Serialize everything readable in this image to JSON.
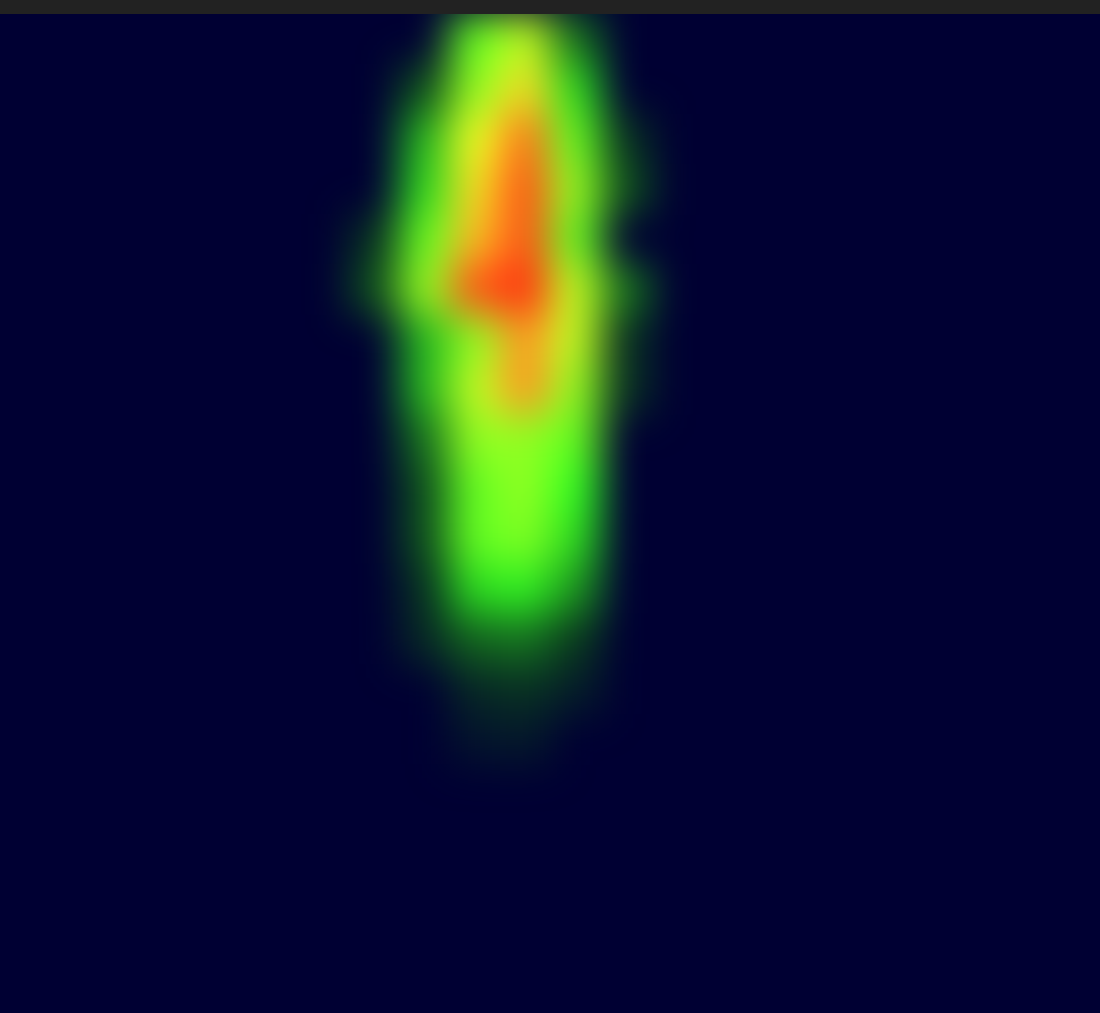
{
  "chart_data": {
    "type": "heatmap",
    "xlim": [
      0,
      22
    ],
    "ylim": [
      0,
      20
    ],
    "tick_labels": false,
    "cells": [
      [
        9,
        0,
        0.45
      ],
      [
        10,
        0,
        0.55
      ],
      [
        11,
        0,
        0.2
      ],
      [
        8,
        1,
        0.15
      ],
      [
        9,
        1,
        0.5
      ],
      [
        10,
        1,
        0.65
      ],
      [
        11,
        1,
        0.35
      ],
      [
        8,
        2,
        0.3
      ],
      [
        9,
        2,
        0.6
      ],
      [
        10,
        2,
        0.8
      ],
      [
        11,
        2,
        0.45
      ],
      [
        12,
        2,
        0.1
      ],
      [
        8,
        3,
        0.35
      ],
      [
        9,
        3,
        0.65
      ],
      [
        10,
        3,
        0.85
      ],
      [
        11,
        3,
        0.5
      ],
      [
        12,
        3,
        0.15
      ],
      [
        7,
        4,
        0.1
      ],
      [
        8,
        4,
        0.45
      ],
      [
        9,
        4,
        0.7
      ],
      [
        10,
        4,
        0.85
      ],
      [
        11,
        4,
        0.45
      ],
      [
        7,
        5,
        0.15
      ],
      [
        8,
        5,
        0.5
      ],
      [
        9,
        5,
        0.85
      ],
      [
        10,
        5,
        0.9
      ],
      [
        11,
        5,
        0.55
      ],
      [
        12,
        5,
        0.2
      ],
      [
        8,
        6,
        0.3
      ],
      [
        9,
        6,
        0.5
      ],
      [
        10,
        6,
        0.75
      ],
      [
        11,
        6,
        0.55
      ],
      [
        12,
        6,
        0.1
      ],
      [
        8,
        7,
        0.3
      ],
      [
        9,
        7,
        0.55
      ],
      [
        10,
        7,
        0.75
      ],
      [
        11,
        7,
        0.5
      ],
      [
        12,
        7,
        0.1
      ],
      [
        8,
        8,
        0.2
      ],
      [
        9,
        8,
        0.5
      ],
      [
        10,
        8,
        0.5
      ],
      [
        11,
        8,
        0.45
      ],
      [
        8,
        9,
        0.15
      ],
      [
        9,
        9,
        0.45
      ],
      [
        10,
        9,
        0.5
      ],
      [
        11,
        9,
        0.4
      ],
      [
        8,
        10,
        0.15
      ],
      [
        9,
        10,
        0.45
      ],
      [
        10,
        10,
        0.48
      ],
      [
        11,
        10,
        0.35
      ],
      [
        8,
        11,
        0.1
      ],
      [
        9,
        11,
        0.35
      ],
      [
        10,
        11,
        0.38
      ],
      [
        11,
        11,
        0.25
      ],
      [
        8,
        12,
        0.08
      ],
      [
        9,
        12,
        0.18
      ],
      [
        10,
        12,
        0.2
      ],
      [
        11,
        12,
        0.12
      ],
      [
        9,
        13,
        0.08
      ],
      [
        10,
        13,
        0.1
      ],
      [
        11,
        13,
        0.06
      ],
      [
        9,
        14,
        0.04
      ],
      [
        10,
        14,
        0.05
      ]
    ]
  }
}
